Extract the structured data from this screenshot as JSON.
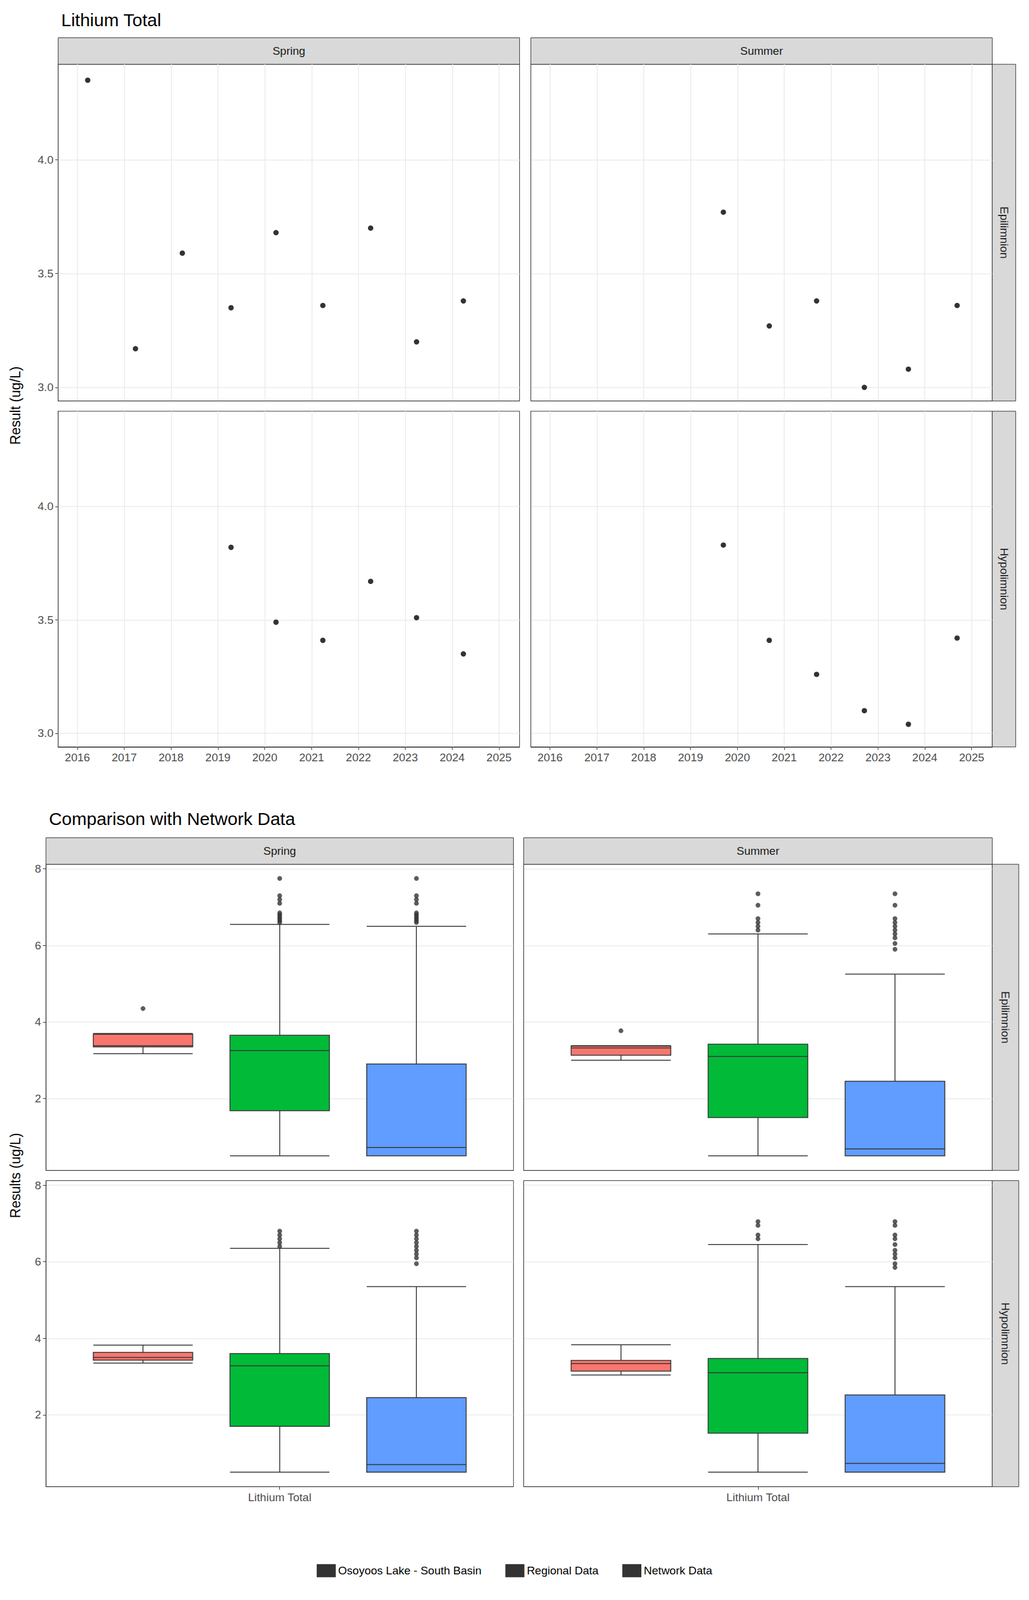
{
  "chart_data": [
    {
      "type": "scatter",
      "title": "Lithium Total",
      "y_label": "Result (ug/L)",
      "columns": [
        "Spring",
        "Summer"
      ],
      "rows": [
        "Epilimnion",
        "Hypolimnion"
      ],
      "xlim": [
        2015.59,
        2025.44
      ],
      "xticks": [
        2016,
        2017,
        2018,
        2019,
        2020,
        2021,
        2022,
        2023,
        2024,
        2025
      ],
      "ylim": [
        2.94,
        4.42
      ],
      "yticks": [
        {
          "value": 3,
          "label": "3.0"
        },
        3.5,
        {
          "value": 4,
          "label": "4.0"
        }
      ],
      "grid": true,
      "color": "#000000",
      "marker": "circle",
      "panels": [
        {
          "column": "Spring",
          "row": "Epilimnion",
          "x": [
            2016.22,
            2017.24,
            2018.24,
            2019.28,
            2020.24,
            2021.24,
            2022.26,
            2023.24,
            2024.24
          ],
          "values": [
            4.35,
            3.17,
            3.59,
            3.35,
            3.68,
            3.36,
            3.7,
            3.2,
            3.38
          ]
        },
        {
          "column": "Summer",
          "row": "Epilimnion",
          "x": [
            2019.7,
            2020.68,
            2021.69,
            2022.71,
            2023.65,
            2024.69
          ],
          "values": [
            3.77,
            3.27,
            3.38,
            3.0,
            3.08,
            3.36
          ]
        },
        {
          "column": "Spring",
          "row": "Hypolimnion",
          "x": [
            2019.28,
            2020.24,
            2021.24,
            2022.26,
            2023.24,
            2024.24
          ],
          "values": [
            3.82,
            3.49,
            3.41,
            3.67,
            3.51,
            3.35
          ]
        },
        {
          "column": "Summer",
          "row": "Hypolimnion",
          "x": [
            2019.7,
            2020.68,
            2021.69,
            2022.71,
            2023.65,
            2024.69
          ],
          "values": [
            3.83,
            3.41,
            3.26,
            3.1,
            3.04,
            3.42
          ]
        }
      ]
    },
    {
      "type": "boxplot",
      "title": "Comparison with Network Data",
      "y_label": "Results (ug/L)",
      "columns": [
        "Spring",
        "Summer"
      ],
      "rows": [
        "Epilimnion",
        "Hypolimnion"
      ],
      "categories": [
        "Lithium Total"
      ],
      "ylim": [
        0.12,
        8.12
      ],
      "yticks": [
        2,
        4,
        6,
        8
      ],
      "grid": true,
      "legend": "bottom",
      "series": [
        {
          "name": "Osoyoos Lake - South Basin",
          "color": "#F8766D"
        },
        {
          "name": "Regional Data",
          "color": "#00BA38"
        },
        {
          "name": "Network Data",
          "color": "#619CFF"
        }
      ],
      "panels": [
        {
          "column": "Spring",
          "row": "Epilimnion",
          "boxes": [
            {
              "low": 3.17,
              "q1": 3.35,
              "median": 3.38,
              "q3": 3.68,
              "high": 3.7,
              "outliers": [
                4.35
              ]
            },
            {
              "low": 0.5,
              "q1": 1.68,
              "median": 3.25,
              "q3": 3.65,
              "high": 6.55,
              "outliers": [
                6.6,
                6.65,
                6.7,
                6.75,
                6.8,
                6.85,
                7.1,
                7.2,
                7.3,
                7.75
              ]
            },
            {
              "low": 0.5,
              "q1": 0.5,
              "median": 0.72,
              "q3": 2.9,
              "high": 6.5,
              "outliers": [
                6.6,
                6.65,
                6.7,
                6.75,
                6.8,
                6.85,
                7.1,
                7.2,
                7.3,
                7.75
              ]
            }
          ]
        },
        {
          "column": "Summer",
          "row": "Epilimnion",
          "boxes": [
            {
              "low": 3.0,
              "q1": 3.13,
              "median": 3.32,
              "q3": 3.37,
              "high": 3.38,
              "outliers": [
                3.77
              ]
            },
            {
              "low": 0.5,
              "q1": 1.5,
              "median": 3.1,
              "q3": 3.42,
              "high": 6.3,
              "outliers": [
                6.4,
                6.5,
                6.6,
                6.7,
                7.05,
                7.35
              ]
            },
            {
              "low": 0.5,
              "q1": 0.5,
              "median": 0.68,
              "q3": 2.45,
              "high": 5.25,
              "outliers": [
                5.9,
                6.05,
                6.2,
                6.3,
                6.4,
                6.5,
                6.6,
                6.7,
                7.05,
                7.35
              ]
            }
          ]
        },
        {
          "column": "Spring",
          "row": "Hypolimnion",
          "boxes": [
            {
              "low": 3.35,
              "q1": 3.43,
              "median": 3.5,
              "q3": 3.63,
              "high": 3.82,
              "outliers": []
            },
            {
              "low": 0.5,
              "q1": 1.7,
              "median": 3.28,
              "q3": 3.6,
              "high": 6.35,
              "outliers": [
                6.4,
                6.5,
                6.6,
                6.7,
                6.8
              ]
            },
            {
              "low": 0.5,
              "q1": 0.5,
              "median": 0.7,
              "q3": 2.45,
              "high": 5.35,
              "outliers": [
                5.95,
                6.1,
                6.2,
                6.3,
                6.4,
                6.5,
                6.6,
                6.7,
                6.8
              ]
            }
          ]
        },
        {
          "column": "Summer",
          "row": "Hypolimnion",
          "boxes": [
            {
              "low": 3.04,
              "q1": 3.14,
              "median": 3.34,
              "q3": 3.42,
              "high": 3.83,
              "outliers": []
            },
            {
              "low": 0.5,
              "q1": 1.52,
              "median": 3.1,
              "q3": 3.47,
              "high": 6.45,
              "outliers": [
                6.6,
                6.7,
                6.95,
                7.05
              ]
            },
            {
              "low": 0.5,
              "q1": 0.5,
              "median": 0.73,
              "q3": 2.52,
              "high": 5.35,
              "outliers": [
                5.85,
                5.95,
                6.1,
                6.2,
                6.3,
                6.45,
                6.6,
                6.7,
                6.95,
                7.05
              ]
            }
          ]
        }
      ]
    }
  ]
}
